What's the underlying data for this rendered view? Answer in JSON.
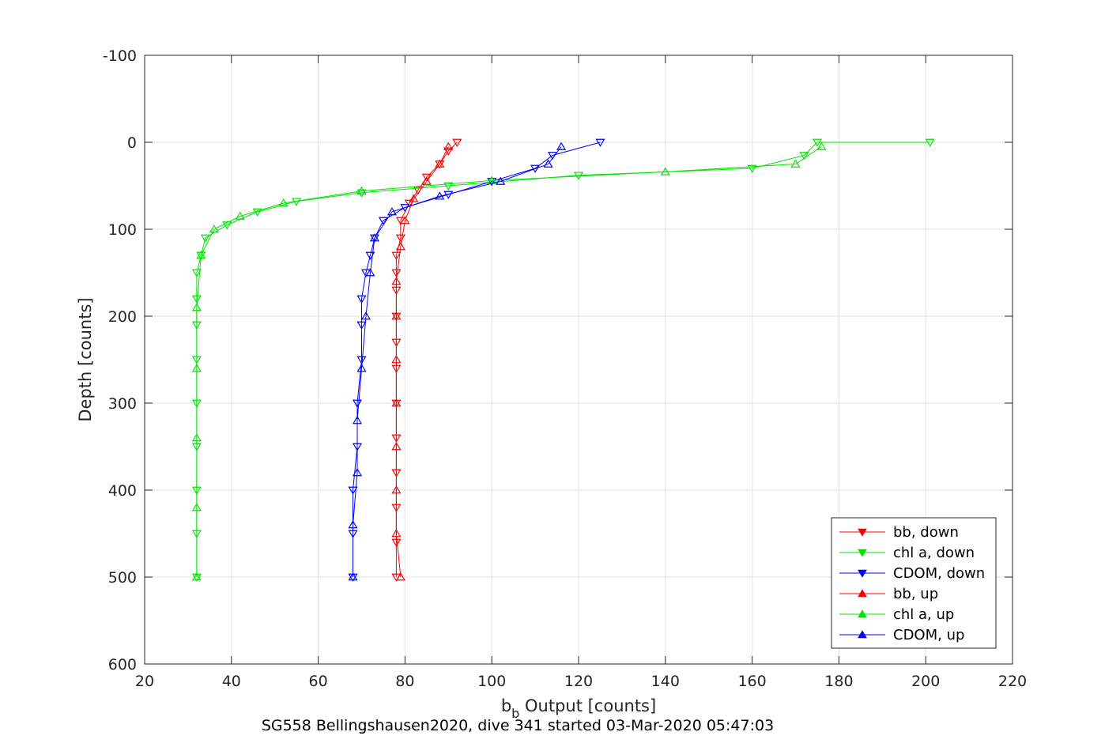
{
  "chart_data": {
    "type": "scatter",
    "title": "",
    "xlabel_main": "b",
    "xlabel_sub": "b",
    "xlabel_rest": " Output [counts]",
    "ylabel": "Depth [counts]",
    "caption": "SG558 Bellingshausen2020, dive 341 started 03-Mar-2020 05:47:03",
    "xlim": [
      20,
      220
    ],
    "ylim": [
      -100,
      600
    ],
    "y_reversed": true,
    "grid": true,
    "legend_position": "bottom-right",
    "x_ticks": [
      "20",
      "40",
      "60",
      "80",
      "100",
      "120",
      "140",
      "160",
      "180",
      "200",
      "220"
    ],
    "y_ticks": [
      "-100",
      "0",
      "100",
      "200",
      "300",
      "400",
      "500",
      "600"
    ],
    "series": [
      {
        "name": "bb, down",
        "color": "#ff0000",
        "marker": "triangle-down",
        "points": [
          [
            92,
            0
          ],
          [
            90,
            10
          ],
          [
            88,
            25
          ],
          [
            85,
            40
          ],
          [
            83,
            55
          ],
          [
            81,
            70
          ],
          [
            79,
            90
          ],
          [
            79,
            110
          ],
          [
            78,
            130
          ],
          [
            78,
            150
          ],
          [
            78,
            170
          ],
          [
            78,
            200
          ],
          [
            78,
            230
          ],
          [
            78,
            260
          ],
          [
            78,
            300
          ],
          [
            78,
            340
          ],
          [
            78,
            380
          ],
          [
            78,
            420
          ],
          [
            78,
            460
          ],
          [
            78,
            500
          ]
        ]
      },
      {
        "name": "chl a, down",
        "color": "#00e400",
        "marker": "triangle-down",
        "points": [
          [
            201,
            0
          ],
          [
            175,
            0
          ],
          [
            172,
            15
          ],
          [
            160,
            30
          ],
          [
            120,
            38
          ],
          [
            90,
            50
          ],
          [
            70,
            58
          ],
          [
            55,
            68
          ],
          [
            46,
            80
          ],
          [
            39,
            95
          ],
          [
            34,
            110
          ],
          [
            33,
            130
          ],
          [
            32,
            150
          ],
          [
            32,
            180
          ],
          [
            32,
            210
          ],
          [
            32,
            250
          ],
          [
            32,
            300
          ],
          [
            32,
            350
          ],
          [
            32,
            400
          ],
          [
            32,
            450
          ],
          [
            32,
            500
          ]
        ]
      },
      {
        "name": "CDOM, down",
        "color": "#0000ff",
        "marker": "triangle-down",
        "points": [
          [
            125,
            0
          ],
          [
            114,
            15
          ],
          [
            110,
            30
          ],
          [
            100,
            45
          ],
          [
            90,
            60
          ],
          [
            80,
            75
          ],
          [
            75,
            90
          ],
          [
            73,
            110
          ],
          [
            72,
            130
          ],
          [
            71,
            150
          ],
          [
            70,
            180
          ],
          [
            70,
            210
          ],
          [
            70,
            250
          ],
          [
            69,
            300
          ],
          [
            69,
            350
          ],
          [
            68,
            400
          ],
          [
            68,
            450
          ],
          [
            68,
            500
          ]
        ]
      },
      {
        "name": "bb, up",
        "color": "#ff0000",
        "marker": "triangle-up",
        "points": [
          [
            79,
            500
          ],
          [
            78,
            450
          ],
          [
            78,
            400
          ],
          [
            78,
            350
          ],
          [
            78,
            300
          ],
          [
            78,
            250
          ],
          [
            78,
            200
          ],
          [
            78,
            160
          ],
          [
            79,
            120
          ],
          [
            80,
            90
          ],
          [
            82,
            65
          ],
          [
            85,
            45
          ],
          [
            88,
            25
          ],
          [
            90,
            5
          ]
        ]
      },
      {
        "name": "chl a, up",
        "color": "#00e400",
        "marker": "triangle-up",
        "points": [
          [
            32,
            500
          ],
          [
            32,
            420
          ],
          [
            32,
            340
          ],
          [
            32,
            260
          ],
          [
            32,
            190
          ],
          [
            33,
            130
          ],
          [
            36,
            100
          ],
          [
            42,
            85
          ],
          [
            52,
            70
          ],
          [
            70,
            56
          ],
          [
            100,
            44
          ],
          [
            140,
            34
          ],
          [
            170,
            25
          ],
          [
            176,
            5
          ]
        ]
      },
      {
        "name": "CDOM, up",
        "color": "#0000ff",
        "marker": "triangle-up",
        "points": [
          [
            68,
            500
          ],
          [
            68,
            440
          ],
          [
            69,
            380
          ],
          [
            69,
            320
          ],
          [
            70,
            260
          ],
          [
            71,
            200
          ],
          [
            72,
            150
          ],
          [
            73,
            110
          ],
          [
            77,
            80
          ],
          [
            88,
            62
          ],
          [
            102,
            45
          ],
          [
            113,
            25
          ],
          [
            116,
            5
          ]
        ]
      }
    ]
  }
}
